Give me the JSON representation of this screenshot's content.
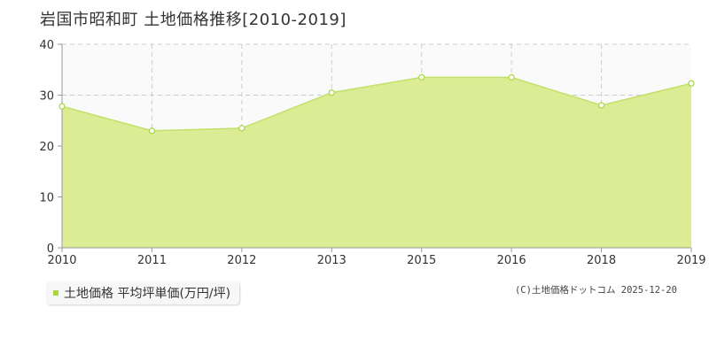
{
  "title": "岩国市昭和町 土地価格推移[2010-2019]",
  "legend_label": "土地価格 平均坪単価(万円/坪)",
  "credit": "(C)土地価格ドットコム 2025-12-20",
  "colors": {
    "area_fill": "#dcec94",
    "line": "#c3e06a",
    "marker": "#a8d63c",
    "grid": "#cccccc",
    "axis": "#999999"
  },
  "chart_data": {
    "type": "area",
    "title": "岩国市昭和町 土地価格推移[2010-2019]",
    "categories": [
      "2010",
      "2011",
      "2012",
      "2013",
      "2015",
      "2016",
      "2018",
      "2019"
    ],
    "series": [
      {
        "name": "土地価格 平均坪単価(万円/坪)",
        "values": [
          27.8,
          23.0,
          23.5,
          30.5,
          33.5,
          33.5,
          28.0,
          32.3
        ]
      }
    ],
    "yticks": [
      0,
      10,
      20,
      30,
      40
    ],
    "ylim": [
      0,
      40
    ],
    "grid": true,
    "legend_position": "bottom-left"
  }
}
